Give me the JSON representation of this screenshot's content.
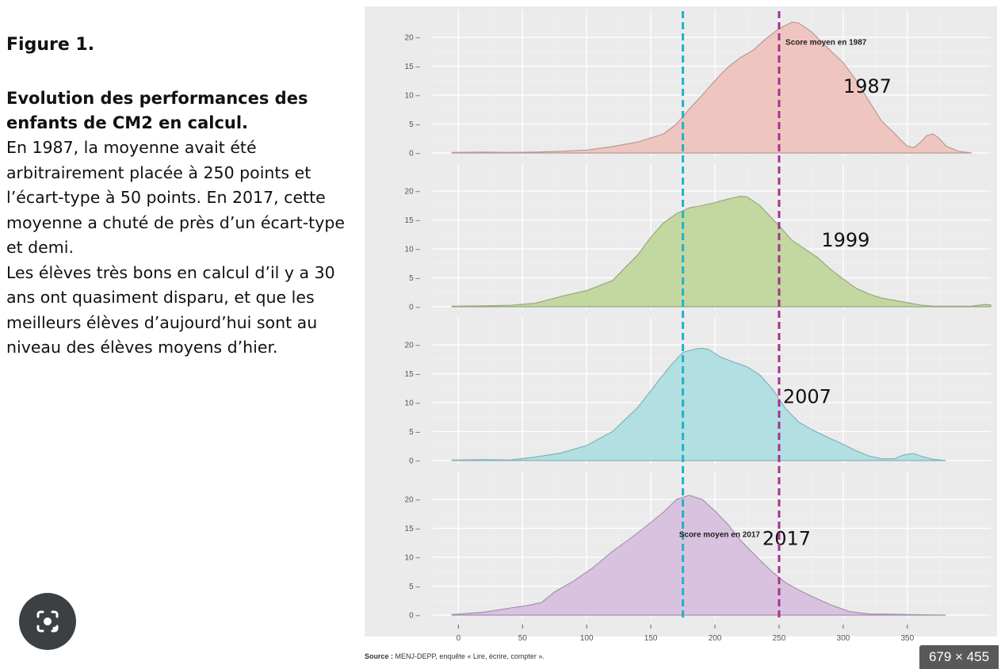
{
  "text": {
    "figure_label": "Figure 1.",
    "title": "Evolution des performances des enfants de CM2 en calcul.",
    "paragraph1": "En 1987, la moyenne avait été arbitrairement placée à 250 points et l’écart-type à 50 points. En 2017, cette moyenne a chuté de près d’un écart-type et demi.",
    "paragraph2": "Les élèves très bons en calcul d’il y a 30 ans ont quasiment disparu, et que les meilleurs élèves d’aujourd’hui sont au niveau des élèves moyens d’hier."
  },
  "source": {
    "label": "Source :",
    "text": " MENJ-DEPP, enquête « Lire, écrire, compter »."
  },
  "overlay": {
    "lens_icon": "google-lens-icon",
    "image_size": "679 × 455"
  },
  "chart_data": {
    "type": "area",
    "xlim": [
      -20,
      415
    ],
    "ylim": [
      0,
      23
    ],
    "x_ticks": [
      0,
      50,
      100,
      150,
      200,
      250,
      300,
      350
    ],
    "y_ticks": [
      0,
      5,
      10,
      15,
      20
    ],
    "grid": true,
    "vlines": [
      {
        "x": 175,
        "color": "#1fb3c9"
      },
      {
        "x": 250,
        "color": "#a6338f"
      }
    ],
    "annotations": [
      {
        "panel": 0,
        "text": "Score moyen en 1987",
        "x": 255,
        "y": 18.7
      },
      {
        "panel": 3,
        "text": "Score moyen en 2017",
        "x": 172,
        "y": 13.5
      }
    ],
    "series": [
      {
        "name": "1987",
        "fill": "#efc5c0",
        "stroke": "#b79a96",
        "label_pos": [
          300,
          11.5
        ],
        "points": [
          [
            -5,
            0.1
          ],
          [
            20,
            0.15
          ],
          [
            40,
            0.1
          ],
          [
            60,
            0.15
          ],
          [
            80,
            0.3
          ],
          [
            100,
            0.5
          ],
          [
            120,
            1.1
          ],
          [
            140,
            1.9
          ],
          [
            160,
            3.3
          ],
          [
            170,
            5.0
          ],
          [
            180,
            7.6
          ],
          [
            190,
            10.0
          ],
          [
            200,
            12.5
          ],
          [
            210,
            14.8
          ],
          [
            220,
            16.5
          ],
          [
            230,
            17.8
          ],
          [
            240,
            19.8
          ],
          [
            250,
            21.5
          ],
          [
            260,
            22.6
          ],
          [
            265,
            22.5
          ],
          [
            275,
            21.0
          ],
          [
            290,
            17.7
          ],
          [
            300,
            15.6
          ],
          [
            310,
            12.6
          ],
          [
            320,
            9.0
          ],
          [
            330,
            5.5
          ],
          [
            340,
            3.4
          ],
          [
            345,
            2.2
          ],
          [
            350,
            1.2
          ],
          [
            355,
            0.9
          ],
          [
            360,
            1.8
          ],
          [
            365,
            3.0
          ],
          [
            370,
            3.3
          ],
          [
            375,
            2.5
          ],
          [
            380,
            1.2
          ],
          [
            390,
            0.3
          ],
          [
            400,
            0
          ]
        ]
      },
      {
        "name": "1999",
        "fill": "#c3d7a0",
        "stroke": "#97a87e",
        "label_pos": [
          283,
          11.5
        ],
        "points": [
          [
            -5,
            0.1
          ],
          [
            20,
            0.15
          ],
          [
            40,
            0.25
          ],
          [
            60,
            0.6
          ],
          [
            80,
            1.8
          ],
          [
            100,
            2.8
          ],
          [
            120,
            4.5
          ],
          [
            140,
            9.0
          ],
          [
            150,
            12.0
          ],
          [
            160,
            14.5
          ],
          [
            170,
            16.1
          ],
          [
            180,
            17.1
          ],
          [
            190,
            17.5
          ],
          [
            200,
            18.0
          ],
          [
            210,
            18.6
          ],
          [
            220,
            19.1
          ],
          [
            225,
            19.0
          ],
          [
            235,
            17.5
          ],
          [
            250,
            14.0
          ],
          [
            260,
            11.5
          ],
          [
            270,
            10.0
          ],
          [
            280,
            8.5
          ],
          [
            290,
            6.5
          ],
          [
            300,
            4.8
          ],
          [
            310,
            3.2
          ],
          [
            320,
            2.2
          ],
          [
            330,
            1.5
          ],
          [
            340,
            1.1
          ],
          [
            350,
            0.7
          ],
          [
            360,
            0.3
          ],
          [
            370,
            0.1
          ],
          [
            400,
            0.1
          ],
          [
            410,
            0.4
          ],
          [
            415,
            0.3
          ]
        ]
      },
      {
        "name": "2007",
        "fill": "#b2dfe1",
        "stroke": "#82b4b8",
        "label_pos": [
          253,
          11.0
        ],
        "points": [
          [
            -5,
            0.1
          ],
          [
            20,
            0.15
          ],
          [
            40,
            0.1
          ],
          [
            60,
            0.6
          ],
          [
            80,
            1.3
          ],
          [
            100,
            2.6
          ],
          [
            120,
            5.0
          ],
          [
            140,
            9.2
          ],
          [
            155,
            13.5
          ],
          [
            165,
            16.3
          ],
          [
            175,
            18.7
          ],
          [
            185,
            19.3
          ],
          [
            190,
            19.4
          ],
          [
            195,
            19.2
          ],
          [
            205,
            17.8
          ],
          [
            215,
            17.0
          ],
          [
            225,
            16.2
          ],
          [
            235,
            14.8
          ],
          [
            245,
            12.3
          ],
          [
            255,
            9.0
          ],
          [
            265,
            6.7
          ],
          [
            275,
            5.4
          ],
          [
            290,
            3.8
          ],
          [
            300,
            2.8
          ],
          [
            310,
            1.7
          ],
          [
            320,
            0.8
          ],
          [
            330,
            0.3
          ],
          [
            340,
            0.3
          ],
          [
            345,
            0.8
          ],
          [
            350,
            1.1
          ],
          [
            355,
            1.2
          ],
          [
            360,
            0.8
          ],
          [
            370,
            0.2
          ],
          [
            380,
            0
          ]
        ]
      },
      {
        "name": "2017",
        "fill": "#d9c2e0",
        "stroke": "#a691ad",
        "label_pos": [
          237,
          13.2
        ],
        "points": [
          [
            -5,
            0.1
          ],
          [
            20,
            0.5
          ],
          [
            40,
            1.2
          ],
          [
            55,
            1.7
          ],
          [
            65,
            2.2
          ],
          [
            75,
            4.0
          ],
          [
            90,
            5.9
          ],
          [
            105,
            8.2
          ],
          [
            120,
            11.0
          ],
          [
            135,
            13.4
          ],
          [
            150,
            16.0
          ],
          [
            160,
            17.8
          ],
          [
            170,
            20.0
          ],
          [
            180,
            20.7
          ],
          [
            190,
            20.0
          ],
          [
            200,
            18.0
          ],
          [
            210,
            15.7
          ],
          [
            220,
            12.9
          ],
          [
            235,
            9.5
          ],
          [
            245,
            7.4
          ],
          [
            255,
            5.6
          ],
          [
            265,
            4.4
          ],
          [
            275,
            3.3
          ],
          [
            290,
            1.8
          ],
          [
            305,
            0.6
          ],
          [
            320,
            0.2
          ],
          [
            350,
            0.1
          ],
          [
            380,
            0
          ]
        ]
      }
    ]
  }
}
